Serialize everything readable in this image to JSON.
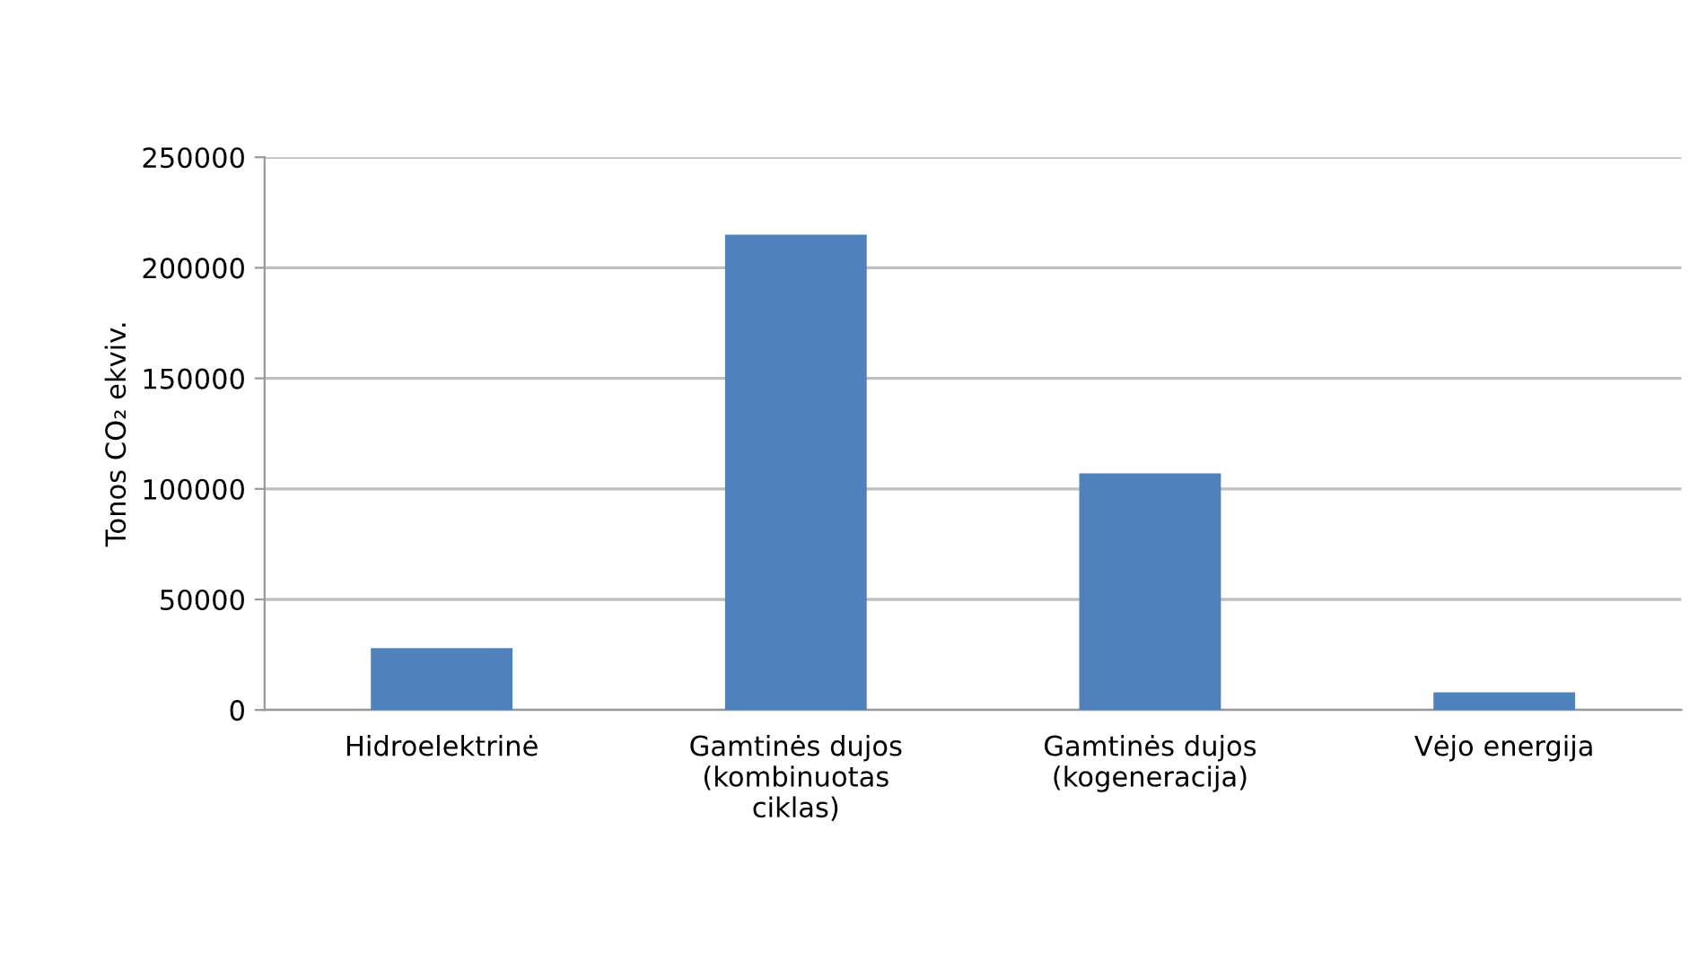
{
  "chart_data": {
    "type": "bar",
    "ylabel": "Tonos CO₂ ekviv.",
    "categories": [
      "Hidroelektrinė",
      "Gamtinės dujos\n(kombinuotas\nciklas)",
      "Gamtinės dujos\n(kogeneracija)",
      "Vėjo energija"
    ],
    "values": [
      28000,
      215000,
      107000,
      8000
    ],
    "color": "#4f81bd",
    "ylim": [
      0,
      250000
    ],
    "yticks": [
      0,
      50000,
      100000,
      150000,
      200000,
      250000
    ],
    "grid": "y",
    "legend": false
  }
}
